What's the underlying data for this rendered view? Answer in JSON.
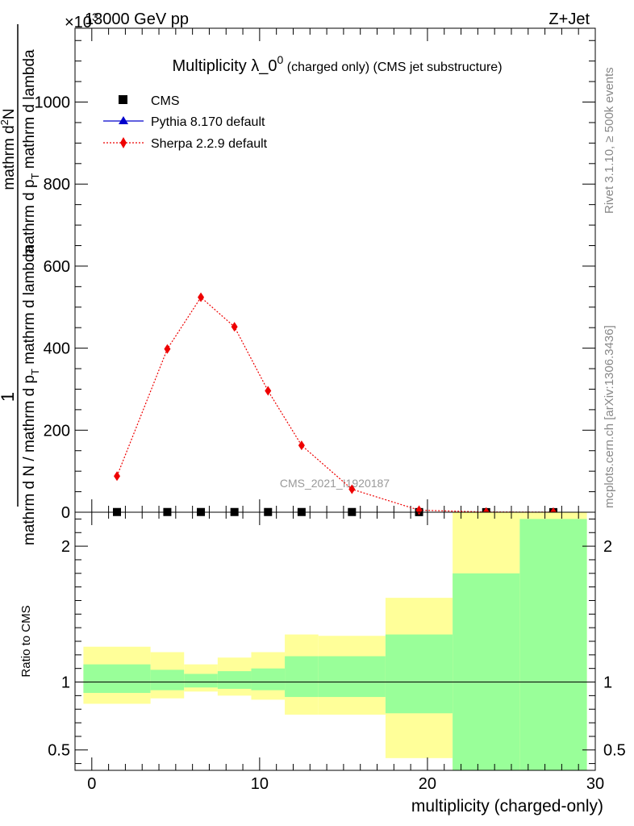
{
  "header": {
    "energy_label": "13000 GeV pp",
    "process_label": "Z+Jet",
    "exponent_label": "×10",
    "exponent_power": "3",
    "rivet_label": "Rivet 3.1.10, ≥ 500k events",
    "mcplots_label": "mcplots.cern.ch [arXiv:1306.3436]",
    "watermark": "CMS_2021_I1920187"
  },
  "chart_data": [
    {
      "type": "scatter",
      "panel": "main",
      "title_main": "Multiplicity λ_0",
      "title_sup": "0",
      "title_sub": "(charged only) (CMS jet substructure)",
      "ylabel_top": "mathrm d",
      "ylabel_top_sup": "2",
      "ylabel_top_end": "N",
      "ylabel_bottom": "mathrm d p",
      "ylabel_bottom_sub": "T",
      "ylabel_bottom_end": " mathrm d lambda",
      "ylabel_lower_line": "mathrm d N / mathrm d p",
      "ylabel_lower_line_sub": "T",
      "ylabel_lower_line_end": " mathrm d lambda",
      "ylabel_one": "1",
      "xlim": [
        -1,
        30
      ],
      "ylim": [
        0,
        1180
      ],
      "yticks": [
        0,
        200,
        400,
        600,
        800,
        1000
      ],
      "ytick_labels": [
        "0",
        "200",
        "400",
        "600",
        "800",
        "1000"
      ],
      "legend_position": "top-left",
      "bin_edges": [
        -0.5,
        3.5,
        5.5,
        7.5,
        9.5,
        11.5,
        13.5,
        17.5,
        21.5,
        25.5,
        29.5
      ],
      "series": [
        {
          "name": "CMS",
          "marker": "square",
          "color": "#000000",
          "x": [
            1.5,
            4.5,
            6.5,
            8.5,
            10.5,
            12.5,
            15.5,
            19.5,
            23.5,
            27.5
          ],
          "y": [
            0.5,
            0.5,
            0.5,
            0.5,
            0.5,
            0.5,
            0.5,
            0.3,
            0.2,
            0.2
          ]
        },
        {
          "name": "Pythia 8.170 default",
          "marker": "triangle",
          "color": "#0000cc",
          "x": [],
          "y": []
        },
        {
          "name": "Sherpa 2.2.9 default",
          "marker": "diamond",
          "color": "#ee0000",
          "x": [
            1.5,
            4.5,
            6.5,
            8.5,
            10.5,
            12.5,
            15.5,
            19.5,
            23.5,
            27.5
          ],
          "y": [
            88,
            398,
            524,
            452,
            296,
            163,
            56,
            5,
            0.5,
            0.3
          ]
        }
      ]
    },
    {
      "type": "area",
      "panel": "ratio",
      "ylabel": "Ratio to CMS",
      "xlabel": "multiplicity (charged-only)",
      "xlim": [
        -1,
        30
      ],
      "ylim": [
        0.35,
        2.25
      ],
      "xticks": [
        0,
        10,
        20,
        30
      ],
      "xtick_labels": [
        "0",
        "10",
        "20",
        "30"
      ],
      "yticks": [
        0.5,
        1,
        2
      ],
      "ytick_labels": [
        "0.5",
        "1",
        "2"
      ],
      "bin_edges": [
        -0.5,
        3.5,
        5.5,
        7.5,
        9.5,
        11.5,
        13.5,
        17.5,
        21.5,
        25.5,
        29.5
      ],
      "stat_band": {
        "color": "#99ff99",
        "low": [
          0.92,
          0.94,
          0.96,
          0.95,
          0.94,
          0.89,
          0.89,
          0.77,
          0.35,
          0.35
        ],
        "high": [
          1.13,
          1.09,
          1.06,
          1.08,
          1.1,
          1.19,
          1.19,
          1.35,
          1.8,
          2.2
        ]
      },
      "syst_band": {
        "color": "#ffff99",
        "low": [
          0.84,
          0.88,
          0.93,
          0.9,
          0.87,
          0.76,
          0.76,
          0.44,
          0.35,
          0.35
        ],
        "high": [
          1.26,
          1.22,
          1.13,
          1.18,
          1.22,
          1.35,
          1.34,
          1.62,
          2.25,
          2.25
        ]
      },
      "reference_line": 1
    }
  ]
}
